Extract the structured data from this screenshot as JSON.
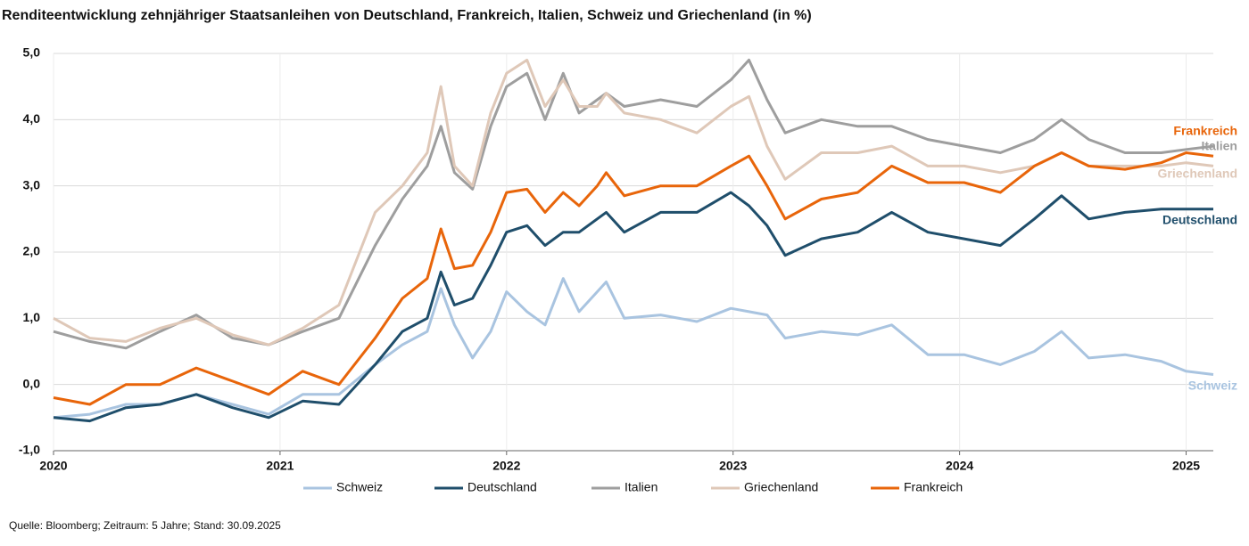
{
  "chart_data": {
    "type": "line",
    "title": "Renditeentwicklung zehnjähriger Staatsanleihen von Deutschland, Frankreich, Italien, Schweiz und Griechenland (in %)",
    "source": "Quelle: Bloomberg; Zeitraum: 5 Jahre; Stand: 30.09.2025",
    "x": [
      2020.0,
      2020.16,
      2020.32,
      2020.47,
      2020.63,
      2020.79,
      2020.95,
      2021.1,
      2021.26,
      2021.42,
      2021.54,
      2021.65,
      2021.71,
      2021.77,
      2021.85,
      2021.93,
      2022.0,
      2022.09,
      2022.17,
      2022.25,
      2022.32,
      2022.4,
      2022.44,
      2022.52,
      2022.68,
      2022.84,
      2022.99,
      2023.07,
      2023.15,
      2023.23,
      2023.39,
      2023.55,
      2023.7,
      2023.86,
      2024.02,
      2024.18,
      2024.33,
      2024.45,
      2024.57,
      2024.73,
      2024.89,
      2025.0,
      2025.12
    ],
    "series": [
      {
        "name": "Schweiz",
        "color": "#a9c4e0",
        "values": [
          -0.5,
          -0.45,
          -0.3,
          -0.3,
          -0.15,
          -0.3,
          -0.45,
          -0.15,
          -0.15,
          0.3,
          0.6,
          0.8,
          1.45,
          0.9,
          0.4,
          0.8,
          1.4,
          1.1,
          0.9,
          1.6,
          1.1,
          1.4,
          1.55,
          1.0,
          1.05,
          0.95,
          1.15,
          1.1,
          1.05,
          0.7,
          0.8,
          0.75,
          0.9,
          0.45,
          0.45,
          0.3,
          0.5,
          0.8,
          0.4,
          0.45,
          0.35,
          0.2,
          0.15
        ]
      },
      {
        "name": "Deutschland",
        "color": "#1f4e6b",
        "values": [
          -0.5,
          -0.55,
          -0.35,
          -0.3,
          -0.15,
          -0.35,
          -0.5,
          -0.25,
          -0.3,
          0.3,
          0.8,
          1.0,
          1.7,
          1.2,
          1.3,
          1.8,
          2.3,
          2.4,
          2.1,
          2.3,
          2.3,
          2.5,
          2.6,
          2.3,
          2.6,
          2.6,
          2.9,
          2.7,
          2.4,
          1.95,
          2.2,
          2.3,
          2.6,
          2.3,
          2.2,
          2.1,
          2.5,
          2.85,
          2.5,
          2.6,
          2.65,
          2.65,
          2.65
        ]
      },
      {
        "name": "Italien",
        "color": "#9e9e9e",
        "values": [
          0.8,
          0.65,
          0.55,
          0.8,
          1.05,
          0.7,
          0.6,
          0.8,
          1.0,
          2.1,
          2.8,
          3.3,
          3.9,
          3.2,
          2.95,
          3.9,
          4.5,
          4.7,
          4.0,
          4.7,
          4.1,
          4.3,
          4.4,
          4.2,
          4.3,
          4.2,
          4.6,
          4.9,
          4.3,
          3.8,
          4.0,
          3.9,
          3.9,
          3.7,
          3.6,
          3.5,
          3.7,
          4.0,
          3.7,
          3.5,
          3.5,
          3.55,
          3.6
        ]
      },
      {
        "name": "Griechenland",
        "color": "#dfc8b8",
        "values": [
          1.0,
          0.7,
          0.65,
          0.85,
          1.0,
          0.75,
          0.6,
          0.85,
          1.2,
          2.6,
          3.0,
          3.5,
          4.5,
          3.3,
          3.0,
          4.1,
          4.7,
          4.9,
          4.2,
          4.6,
          4.2,
          4.2,
          4.4,
          4.1,
          4.0,
          3.8,
          4.2,
          4.35,
          3.6,
          3.1,
          3.5,
          3.5,
          3.6,
          3.3,
          3.3,
          3.2,
          3.3,
          3.5,
          3.3,
          3.3,
          3.3,
          3.35,
          3.3
        ]
      },
      {
        "name": "Frankreich",
        "color": "#e8650a",
        "values": [
          -0.2,
          -0.3,
          0.0,
          0.0,
          0.25,
          0.05,
          -0.15,
          0.2,
          0.0,
          0.7,
          1.3,
          1.6,
          2.35,
          1.75,
          1.8,
          2.3,
          2.9,
          2.95,
          2.6,
          2.9,
          2.7,
          3.0,
          3.2,
          2.85,
          3.0,
          3.0,
          3.3,
          3.45,
          3.0,
          2.5,
          2.8,
          2.9,
          3.3,
          3.05,
          3.05,
          2.9,
          3.3,
          3.5,
          3.3,
          3.25,
          3.35,
          3.5,
          3.45
        ]
      }
    ],
    "xlim": [
      2020,
      2025.12
    ],
    "xticks": [
      2020,
      2021,
      2022,
      2023,
      2024,
      2025
    ],
    "ylim": [
      -1,
      5
    ],
    "yticks": [
      {
        "value": -1,
        "label": "-1,0"
      },
      {
        "value": 0,
        "label": "0,0"
      },
      {
        "value": 1,
        "label": "1,0"
      },
      {
        "value": 2,
        "label": "2,0"
      },
      {
        "value": 3,
        "label": "3,0"
      },
      {
        "value": 4,
        "label": "4,0"
      },
      {
        "value": 5,
        "label": "5,0"
      }
    ],
    "grid": true
  }
}
